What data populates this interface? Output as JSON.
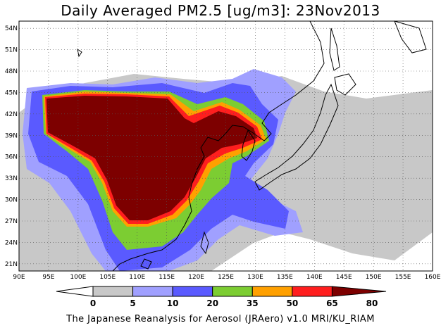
{
  "title": "Daily Averaged PM2.5 [ug/m3]: 23Nov2013",
  "footer": "The Japanese Reanalysis for Aerosol (JRAero) v1.0 MRI/KU_RIAM",
  "lat_labels": [
    "54N",
    "51N",
    "48N",
    "45N",
    "42N",
    "39N",
    "36N",
    "33N",
    "30N",
    "27N",
    "24N",
    "21N"
  ],
  "lon_labels": [
    "90E",
    "95E",
    "100E",
    "105E",
    "110E",
    "115E",
    "120E",
    "125E",
    "130E",
    "135E",
    "140E",
    "145E",
    "150E",
    "155E",
    "160E"
  ],
  "colorbar": {
    "levels": [
      "0",
      "5",
      "10",
      "20",
      "35",
      "50",
      "65",
      "80"
    ],
    "colors": [
      "#ffffff",
      "#c8c8c8",
      "#a0a0ff",
      "#5a5aff",
      "#7ccd32",
      "#ffa000",
      "#ff1e1e",
      "#7d0000"
    ]
  },
  "chart_data": {
    "type": "heatmap",
    "title": "Daily Averaged PM2.5 [ug/m3]: 23Nov2013",
    "x_ticks": [
      "90E",
      "95E",
      "100E",
      "105E",
      "110E",
      "115E",
      "120E",
      "125E",
      "130E",
      "135E",
      "140E",
      "145E",
      "150E",
      "155E",
      "160E"
    ],
    "y_ticks": [
      "54N",
      "51N",
      "48N",
      "45N",
      "42N",
      "39N",
      "36N",
      "33N",
      "30N",
      "27N",
      "24N",
      "21N"
    ],
    "xlim": [
      90,
      160
    ],
    "ylim": [
      20,
      55
    ],
    "grid": true,
    "contour_levels": [
      0,
      5,
      10,
      20,
      35,
      50,
      65,
      80
    ],
    "unit": "ug/m3"
  }
}
